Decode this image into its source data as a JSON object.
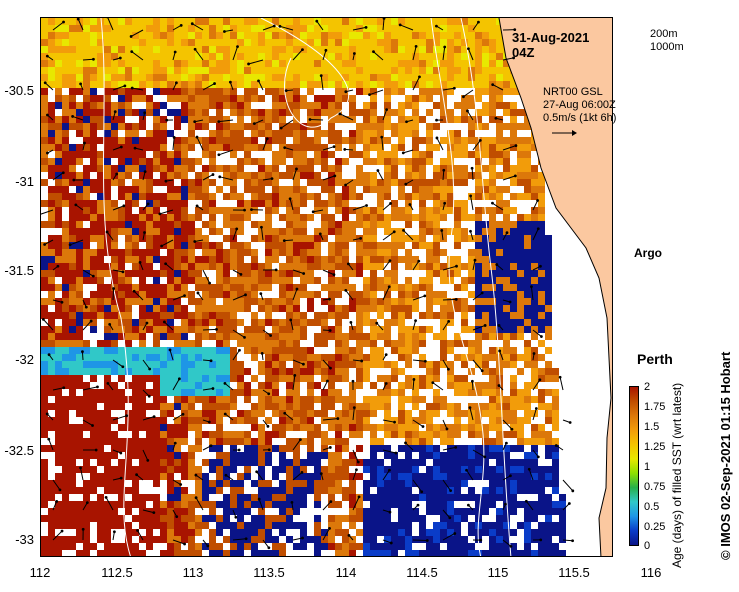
{
  "map": {
    "title": "31-Aug-2021 04Z",
    "contour_legend": [
      "200m",
      "1000m"
    ],
    "current_legend": [
      "NRT00 GSL",
      "27-Aug 06:00Z",
      "0.5m/s (1kt 6h)"
    ],
    "places": [
      {
        "name": "Argo",
        "lon": 115.78,
        "lat": -31.45,
        "marker": "magenta-star"
      },
      {
        "name": "Perth",
        "lon": 115.86,
        "lat": -31.95,
        "marker": "black-dot"
      }
    ],
    "x_ticks": [
      "112",
      "112.5",
      "113",
      "113.5",
      "114",
      "114.5",
      "115",
      "115.5",
      "116"
    ],
    "y_ticks": [
      "-30.5",
      "-31",
      "-31.5",
      "-32",
      "-32.5",
      "-33"
    ],
    "colorbar": {
      "title": "Age (days) of filled SST (wrt latest)",
      "ticks": [
        "2",
        "1.75",
        "1.5",
        "1.25",
        "1",
        "0.75",
        "0.5",
        "0.25",
        "0"
      ],
      "colors": [
        "#0a1488",
        "#0a3cc8",
        "#1e96e6",
        "#30c8c8",
        "#26b04a",
        "#8ee000",
        "#e8e800",
        "#f4c400",
        "#f29c0a",
        "#dc780a",
        "#c04e00",
        "#a81400"
      ]
    },
    "credit": "IMOS 02-Sep-2021 01:15 Hobart",
    "copyright_symbol": "©",
    "colors": {
      "land": "#fbc8a0",
      "background": "#ffffff",
      "arrows": "#000000"
    }
  }
}
